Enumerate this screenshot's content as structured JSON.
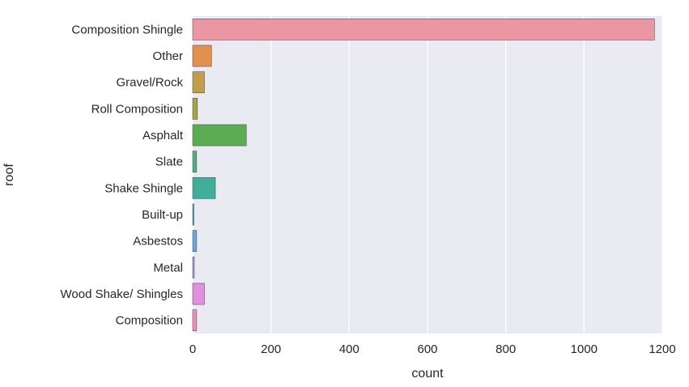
{
  "chart_data": {
    "type": "bar",
    "orientation": "horizontal",
    "categories": [
      "Composition Shingle",
      "Other",
      "Gravel/Rock",
      "Roll Composition",
      "Asphalt",
      "Slate",
      "Shake Shingle",
      "Built-up",
      "Asbestos",
      "Metal",
      "Wood Shake/ Shingles",
      "Composition"
    ],
    "values": [
      1180,
      48,
      30,
      12,
      137,
      10,
      58,
      2,
      10,
      4,
      30,
      10
    ],
    "colors": [
      "#ea96a3",
      "#e1904d",
      "#c39e4a",
      "#a5a446",
      "#5aae51",
      "#51ae84",
      "#41ae9b",
      "#3fa8b0",
      "#6aa8dc",
      "#a2a1e2",
      "#e08fe3",
      "#e891c1"
    ],
    "title": "",
    "xlabel": "count",
    "ylabel": "roof",
    "xlim": [
      0,
      1200
    ],
    "xticks": [
      0,
      200,
      400,
      600,
      800,
      1000,
      1200
    ],
    "grid": true,
    "background": "#eaeaf2",
    "legend": "none"
  }
}
